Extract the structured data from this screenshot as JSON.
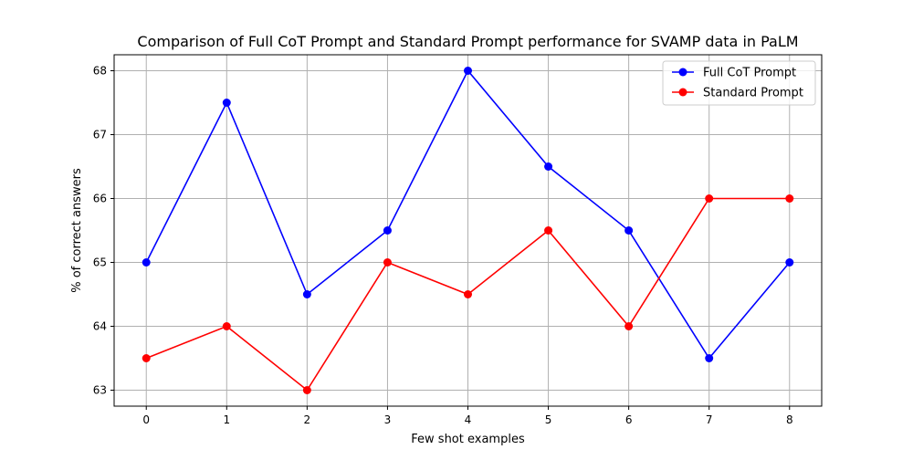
{
  "chart_data": {
    "type": "line",
    "title": "Comparison of Full CoT Prompt and Standard Prompt performance for SVAMP data in PaLM",
    "xlabel": "Few shot examples",
    "ylabel": "% of correct answers",
    "x": [
      0,
      1,
      2,
      3,
      4,
      5,
      6,
      7,
      8
    ],
    "x_ticks": [
      "0",
      "1",
      "2",
      "3",
      "4",
      "5",
      "6",
      "7",
      "8"
    ],
    "y_ticks": [
      "63",
      "64",
      "65",
      "66",
      "67",
      "68"
    ],
    "xlim": [
      -0.4,
      8.4
    ],
    "ylim": [
      62.75,
      68.25
    ],
    "grid": true,
    "legend_position": "top-right",
    "series": [
      {
        "name": "Full CoT Prompt",
        "color": "#0000ff",
        "marker": "circle",
        "values": [
          65,
          67.5,
          64.5,
          65.5,
          68,
          66.5,
          65.5,
          63.5,
          65
        ]
      },
      {
        "name": "Standard Prompt",
        "color": "#ff0000",
        "marker": "circle",
        "values": [
          63.5,
          64,
          63,
          65,
          64.5,
          65.5,
          64,
          66,
          66
        ]
      }
    ]
  }
}
